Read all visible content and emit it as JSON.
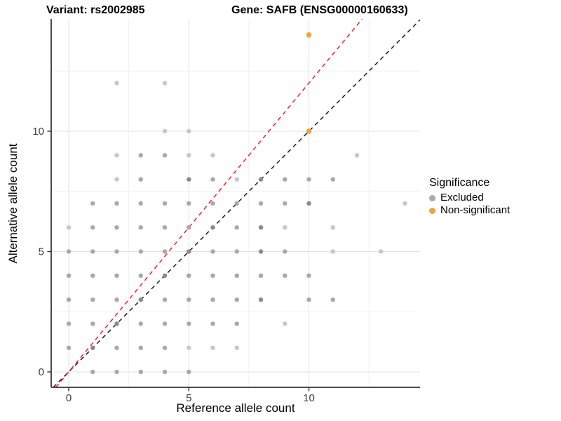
{
  "chart_data": {
    "type": "scatter",
    "titles": {
      "variant": "Variant: rs2002985",
      "gene": "Gene: SAFB (ENSG00000160633)"
    },
    "xlabel": "Reference allele count",
    "ylabel": "Alternative allele count",
    "xlim": [
      -0.73,
      14.63
    ],
    "ylim": [
      -0.64,
      14.66
    ],
    "x_ticks": [
      "0",
      "5",
      "10"
    ],
    "x_tick_values": [
      0,
      5,
      10
    ],
    "x_minor": [
      2.5,
      7.5,
      12.5
    ],
    "y_ticks": [
      "0",
      "5",
      "10"
    ],
    "y_tick_values": [
      0,
      5,
      10
    ],
    "y_minor": [
      2.5,
      7.5,
      12.5
    ],
    "grid": true,
    "legend": {
      "title": "Significance",
      "position": "right",
      "items": [
        {
          "label": "Excluded",
          "color": "#A9A9A9"
        },
        {
          "label": "Non-significant",
          "color": "#F1A33C"
        }
      ]
    },
    "series": [
      {
        "name": "Excluded",
        "color": "#A9A9A9",
        "shade_colors": {
          "l": "#C7C7C7",
          "m": "#A9A9A9",
          "d": "#8A8A8A"
        },
        "points": [
          [
            1,
            0,
            "m"
          ],
          [
            2,
            0,
            "m"
          ],
          [
            3,
            0,
            "m"
          ],
          [
            4,
            0,
            "m"
          ],
          [
            5,
            0,
            "m"
          ],
          [
            0,
            1,
            "m"
          ],
          [
            1,
            1,
            "d"
          ],
          [
            2,
            1,
            "m"
          ],
          [
            3,
            1,
            "m"
          ],
          [
            4,
            1,
            "m"
          ],
          [
            5,
            1,
            "l"
          ],
          [
            6,
            1,
            "l"
          ],
          [
            7,
            1,
            "l"
          ],
          [
            0,
            2,
            "m"
          ],
          [
            1,
            2,
            "m"
          ],
          [
            2,
            2,
            "d"
          ],
          [
            3,
            2,
            "m"
          ],
          [
            4,
            2,
            "m"
          ],
          [
            5,
            2,
            "m"
          ],
          [
            6,
            2,
            "m"
          ],
          [
            7,
            2,
            "m"
          ],
          [
            9,
            2,
            "l"
          ],
          [
            0,
            3,
            "m"
          ],
          [
            1,
            3,
            "m"
          ],
          [
            2,
            3,
            "m"
          ],
          [
            3,
            3,
            "d"
          ],
          [
            4,
            3,
            "m"
          ],
          [
            5,
            3,
            "m"
          ],
          [
            6,
            3,
            "m"
          ],
          [
            7,
            3,
            "m"
          ],
          [
            8,
            3,
            "d"
          ],
          [
            10,
            3,
            "m"
          ],
          [
            11,
            3,
            "m"
          ],
          [
            0,
            4,
            "m"
          ],
          [
            1,
            4,
            "m"
          ],
          [
            2,
            4,
            "m"
          ],
          [
            3,
            4,
            "m"
          ],
          [
            4,
            4,
            "d"
          ],
          [
            5,
            4,
            "m"
          ],
          [
            6,
            4,
            "m"
          ],
          [
            7,
            4,
            "m"
          ],
          [
            8,
            4,
            "m"
          ],
          [
            9,
            4,
            "m"
          ],
          [
            10,
            4,
            "m"
          ],
          [
            0,
            5,
            "m"
          ],
          [
            1,
            5,
            "m"
          ],
          [
            2,
            5,
            "m"
          ],
          [
            3,
            5,
            "m"
          ],
          [
            4,
            5,
            "m"
          ],
          [
            5,
            5,
            "d"
          ],
          [
            6,
            5,
            "m"
          ],
          [
            7,
            5,
            "m"
          ],
          [
            8,
            5,
            "d"
          ],
          [
            9,
            5,
            "m"
          ],
          [
            11,
            5,
            "l"
          ],
          [
            13,
            5,
            "l"
          ],
          [
            0,
            6,
            "l"
          ],
          [
            1,
            6,
            "m"
          ],
          [
            2,
            6,
            "m"
          ],
          [
            3,
            6,
            "m"
          ],
          [
            4,
            6,
            "m"
          ],
          [
            5,
            6,
            "m"
          ],
          [
            6,
            6,
            "d"
          ],
          [
            7,
            6,
            "m"
          ],
          [
            8,
            6,
            "d"
          ],
          [
            9,
            6,
            "l"
          ],
          [
            11,
            6,
            "l"
          ],
          [
            1,
            7,
            "m"
          ],
          [
            2,
            7,
            "m"
          ],
          [
            3,
            7,
            "m"
          ],
          [
            4,
            7,
            "m"
          ],
          [
            5,
            7,
            "m"
          ],
          [
            6,
            7,
            "m"
          ],
          [
            7,
            7,
            "m"
          ],
          [
            8,
            7,
            "m"
          ],
          [
            9,
            7,
            "m"
          ],
          [
            10,
            7,
            "d"
          ],
          [
            14,
            7,
            "l"
          ],
          [
            2,
            8,
            "l"
          ],
          [
            3,
            8,
            "m"
          ],
          [
            5,
            8,
            "d"
          ],
          [
            6,
            8,
            "m"
          ],
          [
            7,
            8,
            "l"
          ],
          [
            8,
            8,
            "d"
          ],
          [
            9,
            8,
            "m"
          ],
          [
            10,
            8,
            "m"
          ],
          [
            11,
            8,
            "m"
          ],
          [
            2,
            9,
            "l"
          ],
          [
            3,
            9,
            "m"
          ],
          [
            4,
            9,
            "m"
          ],
          [
            5,
            9,
            "l"
          ],
          [
            6,
            9,
            "l"
          ],
          [
            12,
            9,
            "l"
          ],
          [
            4,
            10,
            "l"
          ],
          [
            5,
            10,
            "l"
          ],
          [
            2,
            12,
            "l"
          ],
          [
            4,
            12,
            "l"
          ]
        ]
      },
      {
        "name": "Non-significant",
        "color": "#F1A33C",
        "points": [
          [
            10,
            10
          ],
          [
            10,
            14
          ]
        ]
      }
    ],
    "ablines": [
      {
        "name": "identity-line",
        "slope": 1,
        "intercept": 0,
        "color": "#1A1A1A",
        "style": "dashed"
      },
      {
        "name": "fit-line",
        "slope": 1.2,
        "intercept": 0,
        "color": "#FF1A1A",
        "style": "dashed"
      }
    ]
  }
}
